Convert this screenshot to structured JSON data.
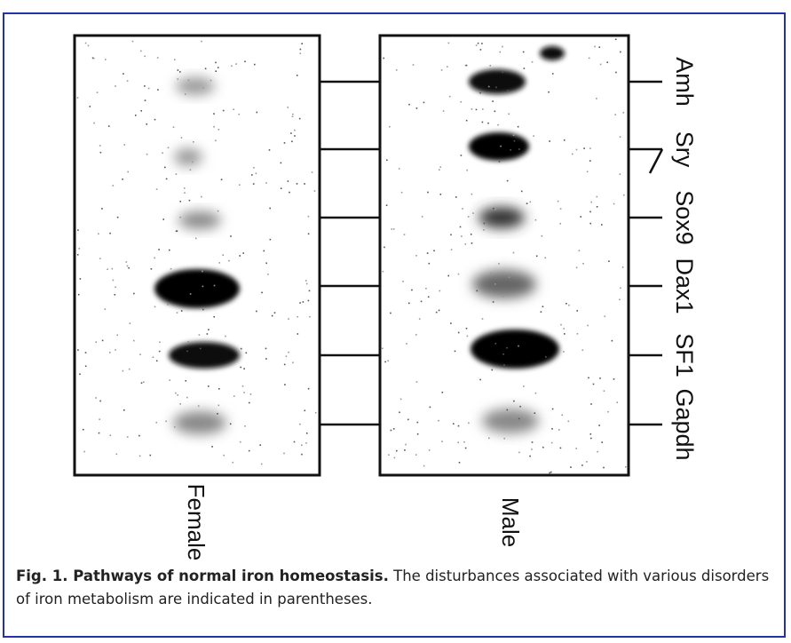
{
  "figure": {
    "lane_labels": [
      "Female",
      "Male"
    ],
    "gene_labels": [
      "Amh",
      "Sry",
      "Sox9",
      "Dax1",
      "SF1",
      "Gapdh"
    ],
    "caption": {
      "label": "Fig. 1.  Pathways of normal iron homeostasis.",
      "text": " The disturbances associated with various disorders of iron metabolism are indicated in parentheses."
    }
  }
}
